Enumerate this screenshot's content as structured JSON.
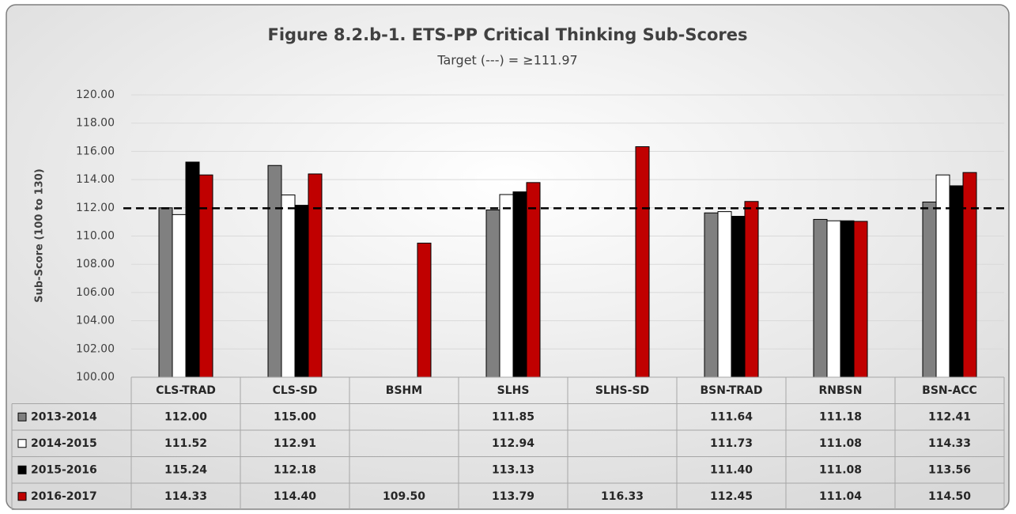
{
  "chart_data": {
    "type": "bar",
    "title": "Figure 8.2.b-1. ETS-PP Critical Thinking Sub-Scores",
    "subtitle": "Target (---) = ≥111.97",
    "target": 111.97,
    "y_label": "Sub-Score (100 to 130)",
    "categories": [
      "CLS-TRAD",
      "CLS-SD",
      "BSHM",
      "SLHS",
      "SLHS-SD",
      "BSN-TRAD",
      "RNBSN",
      "BSN-ACC"
    ],
    "series": [
      {
        "name": "2013-2014",
        "color": "#808080",
        "values": [
          112.0,
          115.0,
          null,
          111.85,
          null,
          111.64,
          111.18,
          112.41
        ],
        "value_labels": [
          "112.00",
          "115.00",
          null,
          "111.85",
          null,
          "111.64",
          "111.18",
          "112.41"
        ]
      },
      {
        "name": "2014-2015",
        "color": "#ffffff",
        "values": [
          111.52,
          112.91,
          null,
          112.94,
          null,
          111.73,
          111.08,
          114.33
        ],
        "value_labels": [
          "111.52",
          "112.91",
          null,
          "112.94",
          null,
          "111.73",
          "111.08",
          "114.33"
        ]
      },
      {
        "name": "2015-2016",
        "color": "#000000",
        "values": [
          115.24,
          112.18,
          null,
          113.13,
          null,
          111.4,
          111.08,
          113.56
        ],
        "value_labels": [
          "115.24",
          "112.18",
          null,
          "113.13",
          null,
          "111.40",
          "111.08",
          "113.56"
        ]
      },
      {
        "name": "2016-2017",
        "color": "#c00000",
        "values": [
          114.33,
          114.4,
          109.5,
          113.79,
          116.33,
          112.45,
          111.04,
          114.5
        ],
        "value_labels": [
          "114.33",
          "114.40",
          "109.50",
          "113.79",
          "116.33",
          "112.45",
          "111.04",
          "114.50"
        ]
      }
    ],
    "ylim": [
      100,
      120
    ],
    "yticks": [
      {
        "value": 100,
        "label": "100.00"
      },
      {
        "value": 102,
        "label": "102.00"
      },
      {
        "value": 104,
        "label": "104.00"
      },
      {
        "value": 106,
        "label": "106.00"
      },
      {
        "value": 108,
        "label": "108.00"
      },
      {
        "value": 110,
        "label": "110.00"
      },
      {
        "value": 112,
        "label": "112.00"
      },
      {
        "value": 114,
        "label": "114.00"
      },
      {
        "value": 116,
        "label": "116.00"
      },
      {
        "value": 118,
        "label": "118.00"
      },
      {
        "value": 120,
        "label": "120.00"
      }
    ],
    "grid": true
  }
}
